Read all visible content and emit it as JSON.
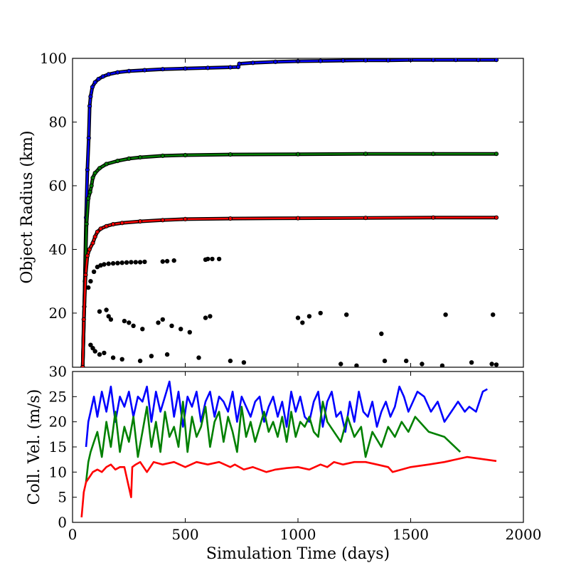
{
  "chart_data": [
    {
      "type": "line",
      "panel": "top",
      "ylabel": "Object Radius (km)",
      "xlim": [
        0,
        2000
      ],
      "ylim": [
        3,
        100
      ],
      "yticks": [
        20,
        40,
        60,
        80,
        100
      ],
      "grid": false,
      "legend": "none",
      "series": [
        {
          "color": "#0000ff",
          "x": [
            45,
            52,
            60,
            66,
            72,
            76,
            80,
            88,
            100,
            115,
            135,
            160,
            200,
            250,
            320,
            400,
            500,
            600,
            700,
            735,
            740,
            800,
            900,
            1000,
            1100,
            1200,
            1300,
            1400,
            1500,
            1600,
            1700,
            1800,
            1880
          ],
          "y": [
            3,
            22,
            50,
            65,
            75,
            85,
            88,
            91,
            92.5,
            93.5,
            94.3,
            95,
            95.6,
            96,
            96.3,
            96.6,
            96.8,
            97,
            97.2,
            97.3,
            98.3,
            98.6,
            98.9,
            99.1,
            99.2,
            99.3,
            99.4,
            99.4,
            99.5,
            99.5,
            99.5,
            99.5,
            99.5
          ]
        },
        {
          "color": "#008000",
          "x": [
            45,
            55,
            62,
            70,
            78,
            84,
            90,
            100,
            120,
            150,
            200,
            250,
            300,
            400,
            500,
            700,
            1000,
            1300,
            1600,
            1880
          ],
          "y": [
            3,
            30,
            48,
            56,
            58,
            60,
            62.5,
            64,
            65.5,
            66.8,
            67.8,
            68.5,
            68.9,
            69.4,
            69.6,
            69.8,
            69.9,
            70,
            70,
            70
          ]
        },
        {
          "color": "#ff0000",
          "x": [
            45,
            50,
            58,
            66,
            75,
            90,
            100,
            110,
            125,
            150,
            180,
            220,
            300,
            400,
            500,
            700,
            1000,
            1300,
            1600,
            1880
          ],
          "y": [
            3,
            18,
            32,
            38,
            40,
            42,
            44,
            45.5,
            46.5,
            47.3,
            47.9,
            48.3,
            48.8,
            49.2,
            49.5,
            49.7,
            49.8,
            49.9,
            50,
            50
          ]
        }
      ],
      "points": {
        "color": "#000000",
        "x": [
          70,
          80,
          95,
          110,
          125,
          140,
          160,
          180,
          200,
          220,
          240,
          260,
          280,
          300,
          320,
          400,
          420,
          450,
          590,
          600,
          620,
          650,
          1050,
          1100,
          120,
          150,
          160,
          170,
          230,
          250,
          270,
          310,
          380,
          400,
          440,
          480,
          520,
          590,
          610,
          1020,
          1000,
          1215,
          1370,
          1655,
          1865,
          1385,
          80,
          90,
          100,
          120,
          140,
          180,
          220,
          300,
          350,
          420,
          560,
          700,
          760,
          1190,
          1260,
          1480,
          1550,
          1640,
          1770,
          1860,
          1880
        ],
        "y": [
          28,
          30,
          33,
          34.5,
          35,
          35.3,
          35.5,
          35.6,
          35.7,
          35.8,
          35.9,
          36,
          36,
          36,
          36.1,
          36.2,
          36.3,
          36.5,
          36.8,
          37,
          37,
          37,
          19,
          20,
          20.5,
          21,
          19,
          18,
          17.5,
          17,
          16,
          15,
          17,
          18,
          16,
          15,
          14,
          18.5,
          19,
          17,
          18.5,
          19.5,
          13.5,
          19.5,
          19.5,
          5,
          10,
          9,
          8,
          7,
          7.5,
          6,
          5.5,
          5,
          6.5,
          7,
          6,
          5,
          4.5,
          4,
          3.5,
          5,
          4,
          3.5,
          4.5,
          4,
          3.8
        ]
      }
    },
    {
      "type": "line",
      "panel": "bottom",
      "xlabel": "Simulation Time (days)",
      "ylabel": "Coll. Vel. (m/s)",
      "xlim": [
        0,
        2000
      ],
      "ylim": [
        0,
        30
      ],
      "xticks": [
        0,
        500,
        1000,
        1500,
        2000
      ],
      "yticks": [
        0,
        5,
        10,
        15,
        20,
        25,
        30
      ],
      "grid": false,
      "legend": "none",
      "series": [
        {
          "color": "#0000ff",
          "x": [
            60,
            70,
            80,
            95,
            110,
            130,
            150,
            170,
            190,
            210,
            230,
            250,
            270,
            290,
            310,
            330,
            350,
            370,
            390,
            410,
            430,
            450,
            470,
            490,
            510,
            530,
            550,
            570,
            590,
            610,
            630,
            650,
            670,
            690,
            710,
            730,
            750,
            770,
            790,
            810,
            830,
            850,
            870,
            890,
            910,
            930,
            950,
            970,
            990,
            1010,
            1030,
            1050,
            1070,
            1090,
            1110,
            1130,
            1150,
            1170,
            1190,
            1210,
            1230,
            1250,
            1270,
            1290,
            1310,
            1330,
            1350,
            1370,
            1390,
            1410,
            1430,
            1450,
            1470,
            1490,
            1510,
            1530,
            1560,
            1590,
            1620,
            1650,
            1680,
            1710,
            1740,
            1760,
            1790,
            1820,
            1840
          ],
          "y": [
            15,
            20,
            22,
            25,
            21,
            26,
            22,
            27,
            20,
            25,
            23,
            26,
            21,
            25,
            24,
            27,
            20,
            26,
            22,
            25,
            28,
            21,
            26,
            19,
            25,
            23,
            26,
            20,
            24,
            26,
            21,
            25,
            24,
            22,
            26,
            20,
            25,
            23,
            21,
            24,
            25,
            20,
            23,
            25,
            21,
            24,
            19,
            26,
            22,
            25,
            21,
            20,
            24,
            26,
            19,
            24,
            26,
            21,
            22,
            18,
            24,
            20,
            26,
            22,
            21,
            24,
            19,
            22,
            24,
            21,
            23,
            27,
            25,
            22,
            24,
            26,
            25,
            22,
            24,
            20,
            22,
            24,
            22,
            23,
            22,
            26,
            26.5
          ]
        },
        {
          "color": "#008000",
          "x": [
            60,
            70,
            80,
            95,
            110,
            130,
            150,
            170,
            190,
            210,
            230,
            250,
            270,
            290,
            310,
            330,
            350,
            370,
            390,
            410,
            430,
            450,
            470,
            490,
            510,
            530,
            550,
            570,
            590,
            610,
            630,
            650,
            670,
            690,
            710,
            730,
            750,
            770,
            790,
            810,
            830,
            850,
            870,
            890,
            910,
            930,
            950,
            970,
            990,
            1010,
            1030,
            1050,
            1070,
            1090,
            1110,
            1130,
            1160,
            1190,
            1220,
            1250,
            1280,
            1300,
            1330,
            1370,
            1400,
            1430,
            1460,
            1490,
            1520,
            1580,
            1650,
            1720
          ],
          "y": [
            8,
            12,
            14,
            16,
            18,
            13,
            20,
            15,
            22,
            14,
            19,
            16,
            21,
            13,
            18,
            23,
            15,
            20,
            14,
            22,
            17,
            19,
            15,
            24,
            14,
            21,
            17,
            19,
            23,
            15,
            20,
            22,
            16,
            21,
            18,
            14,
            23,
            17,
            20,
            16,
            19,
            22,
            18,
            20,
            17,
            21,
            16,
            22,
            17,
            20,
            19,
            21,
            18,
            17,
            24,
            20,
            18,
            16,
            21,
            17,
            19,
            13,
            18,
            15,
            19,
            17,
            20,
            18,
            21,
            18,
            17,
            14
          ]
        },
        {
          "color": "#ff0000",
          "x": [
            40,
            50,
            60,
            75,
            90,
            110,
            130,
            150,
            170,
            190,
            210,
            230,
            260,
            265,
            280,
            300,
            330,
            360,
            400,
            450,
            500,
            550,
            600,
            650,
            700,
            720,
            760,
            800,
            860,
            900,
            950,
            1000,
            1050,
            1100,
            1130,
            1160,
            1200,
            1250,
            1300,
            1350,
            1400,
            1420,
            1500,
            1580,
            1650,
            1750,
            1880
          ],
          "y": [
            1,
            6,
            8,
            9,
            10,
            10.5,
            10,
            11,
            11.5,
            10.5,
            11,
            11,
            5,
            11,
            11.5,
            12,
            10,
            12,
            11.5,
            12,
            11,
            12,
            11.5,
            12,
            11,
            11.5,
            10.5,
            11,
            10,
            10.5,
            10.8,
            11,
            10.5,
            11.5,
            11,
            12,
            11.5,
            12,
            12,
            11.5,
            11,
            10,
            11,
            11.5,
            12,
            13,
            12.2
          ]
        }
      ]
    }
  ]
}
